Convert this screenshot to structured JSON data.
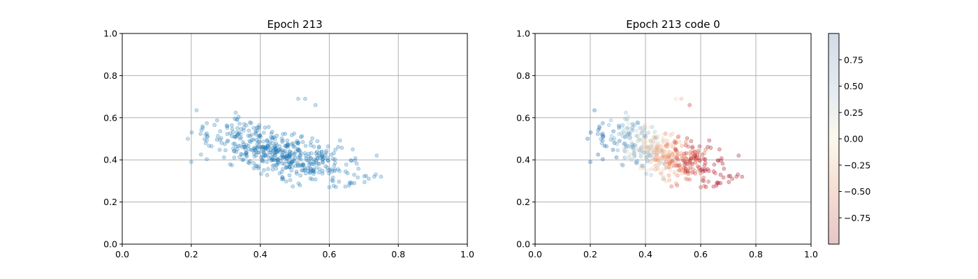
{
  "chart_data": [
    {
      "type": "scatter",
      "title": "Epoch 213",
      "xlabel": "",
      "ylabel": "",
      "xlim": [
        0.0,
        1.0
      ],
      "ylim": [
        0.0,
        1.0
      ],
      "x_ticks": [
        "0.0",
        "0.2",
        "0.4",
        "0.6",
        "0.8",
        "1.0"
      ],
      "y_ticks": [
        "0.0",
        "0.2",
        "0.4",
        "0.6",
        "0.8",
        "1.0"
      ],
      "grid": true,
      "marker_color": "#1f77b4",
      "point_count": 500,
      "point_cloud": {
        "x_range": [
          0.19,
          0.75
        ],
        "y_range": [
          0.27,
          0.7
        ],
        "trend": "y decreases as x increases, densest near x 0.3-0.55, y 0.4-0.55"
      },
      "notable_points": [
        {
          "x": 0.19,
          "y": 0.5
        },
        {
          "x": 0.2,
          "y": 0.39
        },
        {
          "x": 0.51,
          "y": 0.69
        },
        {
          "x": 0.53,
          "y": 0.69
        },
        {
          "x": 0.56,
          "y": 0.66
        },
        {
          "x": 0.73,
          "y": 0.32
        },
        {
          "x": 0.75,
          "y": 0.32
        },
        {
          "x": 0.6,
          "y": 0.27
        }
      ]
    },
    {
      "type": "scatter",
      "title": "Epoch 213 code 0",
      "xlabel": "",
      "ylabel": "",
      "xlim": [
        0.0,
        1.0
      ],
      "ylim": [
        0.0,
        1.0
      ],
      "x_ticks": [
        "0.0",
        "0.2",
        "0.4",
        "0.6",
        "0.8",
        "1.0"
      ],
      "y_ticks": [
        "0.0",
        "0.2",
        "0.4",
        "0.6",
        "0.8",
        "1.0"
      ],
      "grid": true,
      "colormap": "RdBu (diverging)",
      "color_range": [
        -1.0,
        1.0
      ],
      "color_trend": "blue (positive) on the left, red (negative) on the right",
      "colorbar": {
        "ticks": [
          "0.75",
          "0.50",
          "0.25",
          "0.00",
          "−0.25",
          "−0.50",
          "−0.75"
        ],
        "tick_values": [
          0.75,
          0.5,
          0.25,
          0.0,
          -0.25,
          -0.5,
          -0.75
        ],
        "placement": "right",
        "colors": {
          "high": "#2166ac",
          "mid": "#f7e9d0",
          "low": "#b2182b"
        }
      }
    }
  ]
}
